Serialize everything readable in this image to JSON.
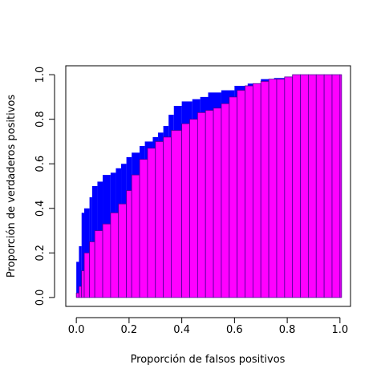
{
  "chart_data": {
    "type": "roc-bars",
    "x_label": "Proporción de falsos positivos",
    "y_label": "Proporción de verdaderos positivos",
    "xlim": [
      -0.04,
      1.04
    ],
    "ylim": [
      -0.04,
      1.04
    ],
    "xticks": [
      {
        "value": 0,
        "label": "0.0"
      },
      0.2,
      0.4,
      0.6,
      0.8,
      {
        "value": 1,
        "label": "1.0"
      }
    ],
    "yticks": [
      {
        "value": 0,
        "label": "0.0"
      },
      0.2,
      0.4,
      0.6,
      0.8,
      {
        "value": 1,
        "label": "1.0"
      }
    ],
    "series": [
      {
        "color": "#0000ff",
        "x": [
          0,
          0.01,
          0.02,
          0.03,
          0.05,
          0.06,
          0.08,
          0.1,
          0.13,
          0.15,
          0.17,
          0.19,
          0.21,
          0.24,
          0.26,
          0.29,
          0.31,
          0.33,
          0.35,
          0.37,
          0.4,
          0.44,
          0.47,
          0.5,
          0.55,
          0.6,
          0.65,
          0.7,
          0.75,
          0.8,
          0.85,
          0.9,
          0.95,
          1.0
        ],
        "values": [
          0.16,
          0.23,
          0.38,
          0.4,
          0.45,
          0.5,
          0.52,
          0.55,
          0.56,
          0.58,
          0.6,
          0.63,
          0.65,
          0.68,
          0.7,
          0.72,
          0.74,
          0.77,
          0.82,
          0.86,
          0.88,
          0.89,
          0.9,
          0.92,
          0.93,
          0.95,
          0.96,
          0.98,
          0.985,
          0.99,
          0.995,
          0.998,
          1.0,
          1.0
        ]
      },
      {
        "color": "#ff00ff",
        "edge": "#4b0096",
        "x": [
          0,
          0.01,
          0.02,
          0.03,
          0.05,
          0.07,
          0.1,
          0.13,
          0.16,
          0.19,
          0.21,
          0.24,
          0.27,
          0.3,
          0.33,
          0.36,
          0.4,
          0.43,
          0.46,
          0.49,
          0.52,
          0.55,
          0.58,
          0.61,
          0.64,
          0.67,
          0.7,
          0.73,
          0.76,
          0.79,
          0.82,
          0.85,
          0.88,
          0.91,
          0.94,
          0.97,
          1.0
        ],
        "values": [
          0.02,
          0.05,
          0.12,
          0.2,
          0.25,
          0.3,
          0.33,
          0.38,
          0.42,
          0.48,
          0.55,
          0.62,
          0.67,
          0.7,
          0.72,
          0.75,
          0.78,
          0.8,
          0.83,
          0.84,
          0.85,
          0.87,
          0.9,
          0.93,
          0.95,
          0.96,
          0.97,
          0.98,
          0.98,
          0.99,
          1.0,
          1.0,
          1.0,
          1.0,
          1.0,
          1.0,
          1.0
        ]
      }
    ]
  }
}
